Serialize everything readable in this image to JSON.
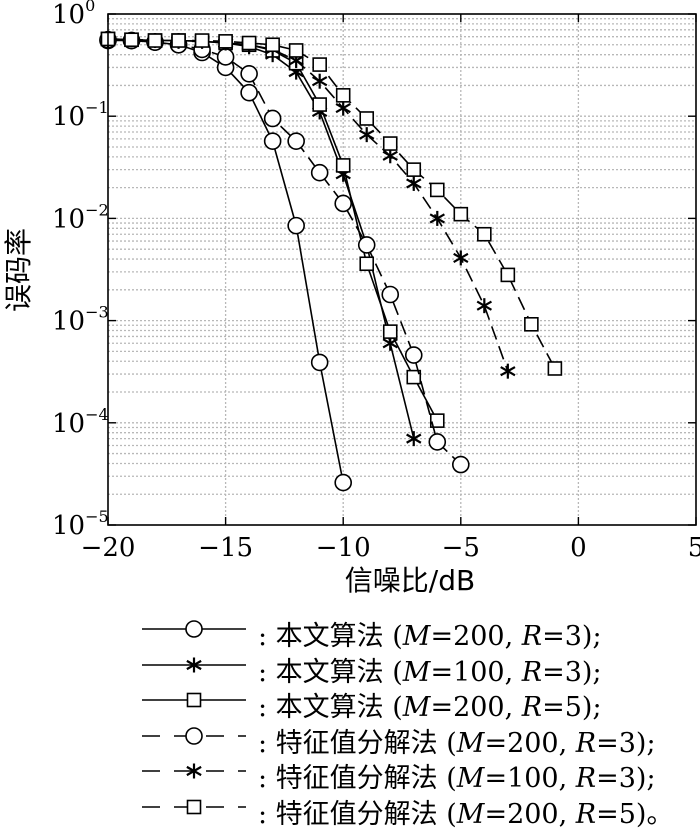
{
  "chart_data": {
    "type": "line",
    "title": "",
    "xlabel": "信噪比/dB",
    "ylabel": "误码率",
    "xlim": [
      -20,
      5
    ],
    "ylim": [
      1e-05,
      1
    ],
    "y_scale": "log",
    "x_ticks": [
      -20,
      -15,
      -10,
      -5,
      0,
      5
    ],
    "x_tick_labels": [
      "−20",
      "−15",
      "−10",
      "−5",
      "0",
      "5"
    ],
    "y_ticks": [
      {
        "value": 1,
        "base": "10",
        "exp": "0"
      },
      {
        "value": 0.1,
        "base": "10",
        "exp": "−1"
      },
      {
        "value": 0.01,
        "base": "10",
        "exp": "−2"
      },
      {
        "value": 0.001,
        "base": "10",
        "exp": "−3"
      },
      {
        "value": 0.0001,
        "base": "10",
        "exp": "−4"
      },
      {
        "value": 1e-05,
        "base": "10",
        "exp": "−5"
      }
    ],
    "grid": true,
    "legend_position": "below",
    "series": [
      {
        "name": "本文算法 (M=200, R=3);",
        "marker": "circle",
        "line": "solid",
        "x": [
          -20,
          -19,
          -18,
          -17,
          -16,
          -15,
          -14,
          -13,
          -12,
          -11,
          -10
        ],
        "y": [
          0.55,
          0.55,
          0.53,
          0.5,
          0.42,
          0.3,
          0.17,
          0.057,
          0.0085,
          0.00039,
          2.6e-05
        ]
      },
      {
        "name": "本文算法 (M=100, R=3);",
        "marker": "star",
        "line": "solid",
        "x": [
          -20,
          -19,
          -18,
          -17,
          -16,
          -15,
          -14,
          -13,
          -12,
          -11,
          -10,
          -9,
          -8,
          -7
        ],
        "y": [
          0.57,
          0.56,
          0.55,
          0.55,
          0.54,
          0.52,
          0.48,
          0.4,
          0.27,
          0.11,
          0.027,
          0.0055,
          0.0006,
          7e-05
        ]
      },
      {
        "name": "本文算法 (M=200, R=5);",
        "marker": "square",
        "line": "solid",
        "x": [
          -20,
          -19,
          -18,
          -17,
          -16,
          -15,
          -14,
          -13,
          -12,
          -11,
          -10,
          -9,
          -8,
          -7,
          -6
        ],
        "y": [
          0.57,
          0.56,
          0.55,
          0.55,
          0.54,
          0.52,
          0.5,
          0.44,
          0.33,
          0.13,
          0.033,
          0.0036,
          0.00078,
          0.00028,
          0.000105
        ]
      },
      {
        "name": "特征值分解法 (M=200, R=3);",
        "marker": "circle",
        "line": "dash",
        "x": [
          -20,
          -19,
          -18,
          -17,
          -16,
          -15,
          -14,
          -13,
          -12,
          -11,
          -10,
          -9,
          -8,
          -7,
          -6,
          -5
        ],
        "y": [
          0.56,
          0.55,
          0.53,
          0.5,
          0.45,
          0.38,
          0.26,
          0.095,
          0.057,
          0.028,
          0.014,
          0.0055,
          0.0018,
          0.00046,
          6.5e-05,
          3.9e-05
        ]
      },
      {
        "name": "特征值分解法 (M=100, R=3);",
        "marker": "star",
        "line": "dash",
        "x": [
          -20,
          -19,
          -18,
          -17,
          -16,
          -15,
          -14,
          -13,
          -12,
          -11,
          -10,
          -9,
          -8,
          -7,
          -6,
          -5,
          -4,
          -3
        ],
        "y": [
          0.56,
          0.56,
          0.55,
          0.54,
          0.54,
          0.52,
          0.5,
          0.45,
          0.35,
          0.22,
          0.12,
          0.066,
          0.041,
          0.022,
          0.01,
          0.0041,
          0.0014,
          0.00032
        ]
      },
      {
        "name": "特征值分解法 (M=200, R=5)。",
        "marker": "square",
        "line": "dash",
        "x": [
          -20,
          -19,
          -18,
          -17,
          -16,
          -15,
          -14,
          -13,
          -12,
          -11,
          -10,
          -9,
          -8,
          -7,
          -6,
          -5,
          -4,
          -3,
          -2,
          -1
        ],
        "y": [
          0.57,
          0.56,
          0.55,
          0.55,
          0.55,
          0.54,
          0.52,
          0.5,
          0.44,
          0.32,
          0.16,
          0.095,
          0.054,
          0.03,
          0.019,
          0.011,
          0.007,
          0.0028,
          0.00092,
          0.00034
        ]
      }
    ]
  },
  "legend": [
    {
      "marker": "circle",
      "line": "solid",
      "prefix": ": 本文算法 (",
      "m": "M",
      "m_val": "=200, ",
      "r": "R",
      "r_val": "=3);"
    },
    {
      "marker": "star",
      "line": "solid",
      "prefix": ": 本文算法 (",
      "m": "M",
      "m_val": "=100, ",
      "r": "R",
      "r_val": "=3);"
    },
    {
      "marker": "square",
      "line": "solid",
      "prefix": ": 本文算法 (",
      "m": "M",
      "m_val": "=200, ",
      "r": "R",
      "r_val": "=5);"
    },
    {
      "marker": "circle",
      "line": "dash",
      "prefix": ": 特征值分解法 (",
      "m": "M",
      "m_val": "=200, ",
      "r": "R",
      "r_val": "=3);"
    },
    {
      "marker": "star",
      "line": "dash",
      "prefix": ": 特征值分解法 (",
      "m": "M",
      "m_val": "=100, ",
      "r": "R",
      "r_val": "=3);"
    },
    {
      "marker": "square",
      "line": "dash",
      "prefix": ": 特征值分解法 (",
      "m": "M",
      "m_val": "=200, ",
      "r": "R",
      "r_val": "=5)。"
    }
  ]
}
